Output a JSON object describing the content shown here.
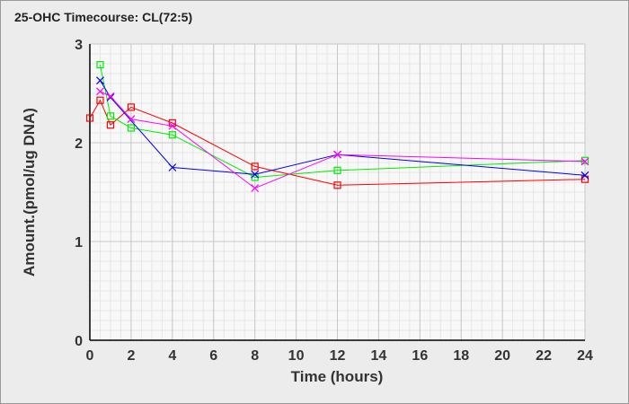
{
  "chart_data": {
    "type": "line",
    "title": "25-OHC Timecourse: CL(72:5)",
    "xlabel": "Time (hours)",
    "ylabel": "Amount.(pmol/ug DNA)",
    "xlim": [
      0,
      24
    ],
    "ylim": [
      0,
      3
    ],
    "xticks": [
      0,
      2,
      4,
      6,
      8,
      10,
      12,
      14,
      16,
      18,
      20,
      22,
      24
    ],
    "yticks": [
      0,
      1,
      2,
      3
    ],
    "grid": true,
    "series": [
      {
        "name": "red",
        "color": "#ff0000",
        "marker": "square",
        "x": [
          0,
          0.5,
          1,
          2,
          4,
          8,
          12,
          24
        ],
        "y": [
          2.25,
          2.43,
          2.18,
          2.36,
          2.2,
          1.76,
          1.57,
          1.63
        ]
      },
      {
        "name": "green",
        "color": "#00ee00",
        "marker": "square",
        "x": [
          0.5,
          1,
          2,
          4,
          8,
          12,
          24
        ],
        "y": [
          2.79,
          2.27,
          2.15,
          2.08,
          1.65,
          1.72,
          1.82
        ]
      },
      {
        "name": "blue",
        "color": "#0000ee",
        "marker": "x",
        "x": [
          0.5,
          1,
          4,
          8,
          12,
          24
        ],
        "y": [
          2.63,
          2.46,
          1.75,
          1.68,
          1.88,
          1.67
        ]
      },
      {
        "name": "magenta",
        "color": "#ff00ff",
        "marker": "x",
        "x": [
          0.5,
          1,
          2,
          4,
          8,
          12,
          24
        ],
        "y": [
          2.52,
          2.47,
          2.24,
          2.17,
          1.54,
          1.88,
          1.81
        ]
      }
    ]
  }
}
